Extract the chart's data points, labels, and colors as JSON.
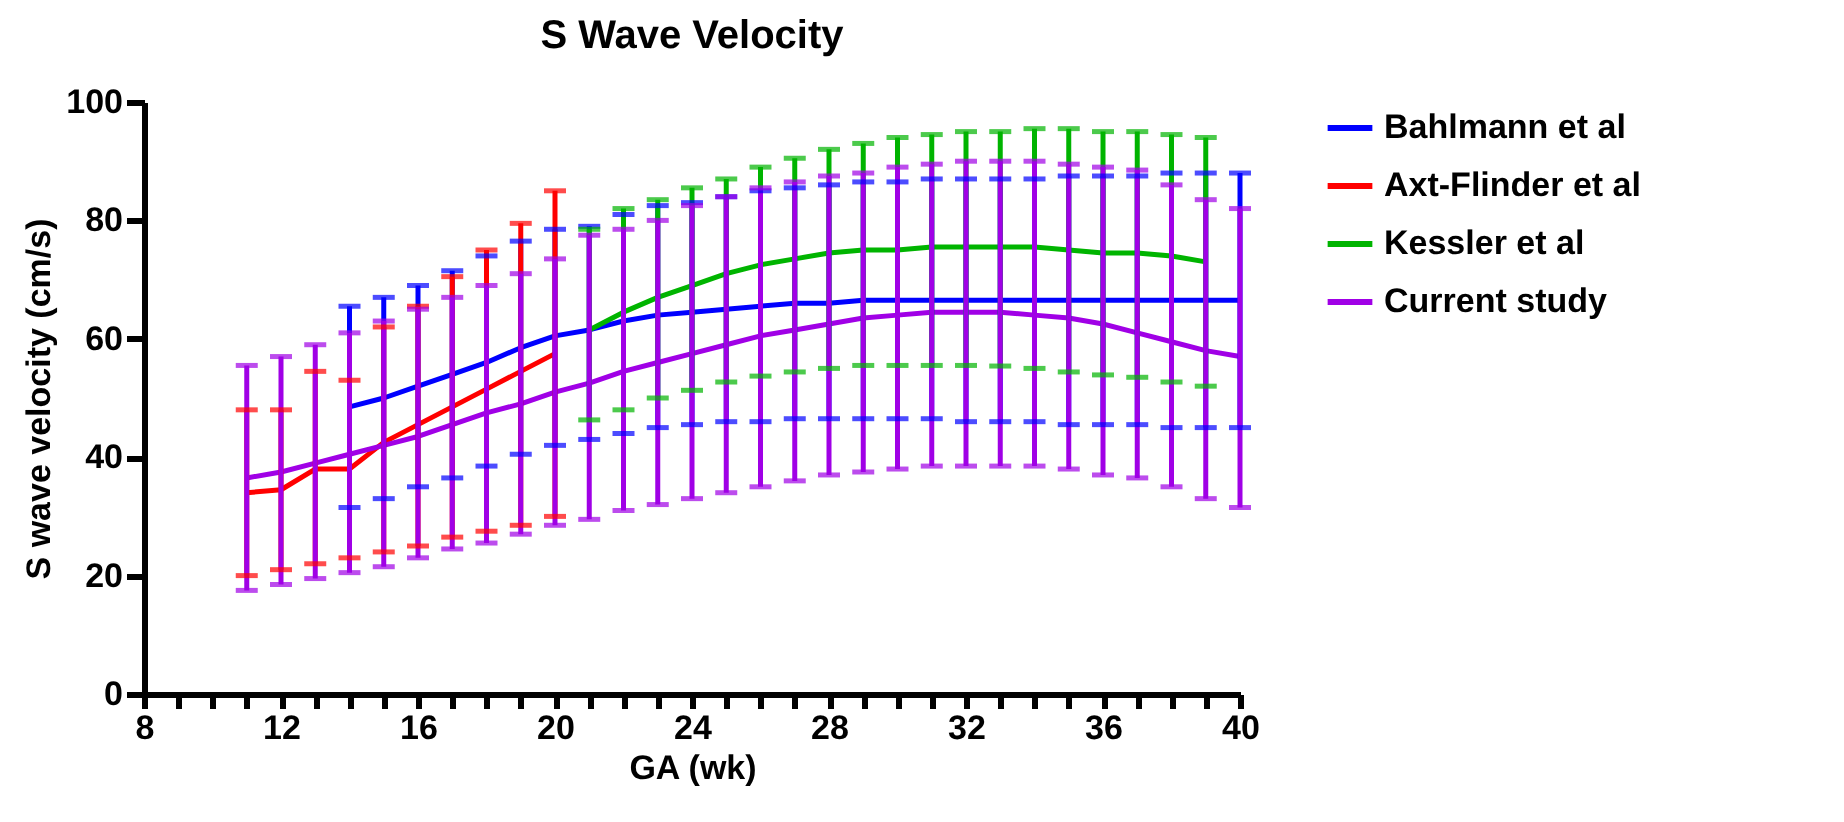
{
  "chart_data": {
    "type": "line",
    "title": "S Wave Velocity",
    "xlabel": "GA (wk)",
    "ylabel": "S wave velocity (cm/s)",
    "xlim": [
      8,
      40
    ],
    "ylim": [
      0,
      100
    ],
    "yticks": [
      0,
      20,
      40,
      60,
      80,
      100
    ],
    "xticks": [
      8,
      {
        "value": 9,
        "label": null
      },
      {
        "value": 10,
        "label": null
      },
      {
        "value": 11,
        "label": null
      },
      12,
      {
        "value": 13,
        "label": null
      },
      {
        "value": 14,
        "label": null
      },
      {
        "value": 15,
        "label": null
      },
      16,
      {
        "value": 17,
        "label": null
      },
      {
        "value": 18,
        "label": null
      },
      {
        "value": 19,
        "label": null
      },
      20,
      {
        "value": 21,
        "label": null
      },
      {
        "value": 22,
        "label": null
      },
      {
        "value": 23,
        "label": null
      },
      24,
      {
        "value": 25,
        "label": null
      },
      {
        "value": 26,
        "label": null
      },
      {
        "value": 27,
        "label": null
      },
      28,
      {
        "value": 29,
        "label": null
      },
      {
        "value": 30,
        "label": null
      },
      {
        "value": 31,
        "label": null
      },
      32,
      {
        "value": 33,
        "label": null
      },
      {
        "value": 34,
        "label": null
      },
      {
        "value": 35,
        "label": null
      },
      36,
      {
        "value": 37,
        "label": null
      },
      {
        "value": 38,
        "label": null
      },
      {
        "value": 39,
        "label": null
      },
      40
    ],
    "grid": false,
    "legend": "top right",
    "marker": "none",
    "line_style": "solid",
    "series": [
      {
        "name": "Bahlmann et al",
        "color": "#0000ff",
        "x": [
          14,
          15,
          16,
          17,
          18,
          19,
          20,
          21,
          22,
          23,
          24,
          25,
          26,
          27,
          28,
          29,
          30,
          31,
          32,
          33,
          34,
          35,
          36,
          37,
          38,
          39,
          40
        ],
        "values": [
          48.5,
          50,
          52,
          54,
          56,
          58.5,
          60.5,
          61.5,
          63,
          64,
          64.5,
          65,
          65.5,
          66,
          66,
          66.5,
          66.5,
          66.5,
          66.5,
          66.5,
          66.5,
          66.5,
          66.5,
          66.5,
          66.5,
          66.5,
          66.5
        ],
        "errors": [
          [
            31.5,
            65.5
          ],
          [
            33,
            67
          ],
          [
            35,
            69
          ],
          [
            36.5,
            71.5
          ],
          [
            38.5,
            74
          ],
          [
            40.5,
            76.5
          ],
          [
            42,
            78.5
          ],
          [
            43,
            79
          ],
          [
            44,
            81
          ],
          [
            45,
            82.5
          ],
          [
            45.5,
            83
          ],
          [
            46,
            84
          ],
          [
            46,
            85
          ],
          [
            46.5,
            85.5
          ],
          [
            46.5,
            86
          ],
          [
            46.5,
            86.5
          ],
          [
            46.5,
            86.5
          ],
          [
            46.5,
            87
          ],
          [
            46,
            87
          ],
          [
            46,
            87
          ],
          [
            46,
            87
          ],
          [
            45.5,
            87.5
          ],
          [
            45.5,
            87.5
          ],
          [
            45.5,
            87.5
          ],
          [
            45,
            88
          ],
          [
            45,
            88
          ],
          [
            45,
            88
          ]
        ]
      },
      {
        "name": "Axt-Flinder et al",
        "color": "#ff0000",
        "x": [
          11,
          12,
          13,
          14,
          15,
          16,
          17,
          18,
          19,
          20
        ],
        "values": [
          34,
          34.5,
          38,
          38,
          42.5,
          45.5,
          48.5,
          51.5,
          54.5,
          57.5
        ],
        "errors": [
          [
            20,
            48
          ],
          [
            21,
            48
          ],
          [
            22,
            54.5
          ],
          [
            23,
            53
          ],
          [
            24,
            62
          ],
          [
            25,
            65.5
          ],
          [
            26.5,
            70.5
          ],
          [
            27.5,
            75
          ],
          [
            28.5,
            79.5
          ],
          [
            30,
            85
          ]
        ]
      },
      {
        "name": "Kessler et al",
        "color": "#00b400",
        "x": [
          21,
          22,
          23,
          24,
          25,
          26,
          27,
          28,
          29,
          30,
          31,
          32,
          33,
          34,
          35,
          36,
          37,
          38,
          39
        ],
        "values": [
          61.5,
          64.5,
          67,
          69,
          71,
          72.5,
          73.5,
          74.5,
          75,
          75,
          75.5,
          75.5,
          75.5,
          75.5,
          75,
          74.5,
          74.5,
          74,
          73
        ],
        "errors": [
          [
            46.3,
            78.5
          ],
          [
            48,
            82
          ],
          [
            50,
            83.5
          ],
          [
            51.3,
            85.5
          ],
          [
            52.7,
            87
          ],
          [
            53.7,
            89
          ],
          [
            54.4,
            90.5
          ],
          [
            55,
            92
          ],
          [
            55.5,
            93
          ],
          [
            55.5,
            94
          ],
          [
            55.5,
            94.5
          ],
          [
            55.5,
            95
          ],
          [
            55.4,
            95
          ],
          [
            55,
            95.5
          ],
          [
            54.4,
            95.5
          ],
          [
            53.9,
            95
          ],
          [
            53.5,
            95
          ],
          [
            52.7,
            94.5
          ],
          [
            52,
            94
          ]
        ]
      },
      {
        "name": "Current study",
        "color": "#a000e6",
        "x": [
          11,
          12,
          13,
          14,
          15,
          16,
          17,
          18,
          19,
          20,
          21,
          22,
          23,
          24,
          25,
          26,
          27,
          28,
          29,
          30,
          31,
          32,
          33,
          34,
          35,
          36,
          37,
          38,
          39,
          40
        ],
        "values": [
          36.5,
          37.5,
          39,
          40.5,
          42,
          43.5,
          45.5,
          47.5,
          49,
          51,
          52.5,
          54.5,
          56,
          57.5,
          59,
          60.5,
          61.5,
          62.5,
          63.5,
          64,
          64.5,
          64.5,
          64.5,
          64,
          63.5,
          62.5,
          61,
          59.5,
          58,
          57
        ],
        "errors": [
          [
            17.5,
            55.5
          ],
          [
            18.5,
            57
          ],
          [
            19.5,
            59
          ],
          [
            20.5,
            61
          ],
          [
            21.5,
            63
          ],
          [
            23,
            65
          ],
          [
            24.5,
            67
          ],
          [
            25.5,
            69
          ],
          [
            27,
            71
          ],
          [
            28.5,
            73.5
          ],
          [
            29.5,
            77.5
          ],
          [
            31,
            78.5
          ],
          [
            32,
            80
          ],
          [
            33,
            82.5
          ],
          [
            34,
            84
          ],
          [
            35,
            85.5
          ],
          [
            36,
            86.5
          ],
          [
            37,
            87.5
          ],
          [
            37.5,
            88
          ],
          [
            38,
            89
          ],
          [
            38.5,
            89.5
          ],
          [
            38.5,
            90
          ],
          [
            38.5,
            90
          ],
          [
            38.5,
            90
          ],
          [
            38,
            89.5
          ],
          [
            37,
            89
          ],
          [
            36.5,
            88.5
          ],
          [
            35,
            86
          ],
          [
            33,
            83.5
          ],
          [
            31.5,
            82
          ]
        ]
      }
    ]
  }
}
